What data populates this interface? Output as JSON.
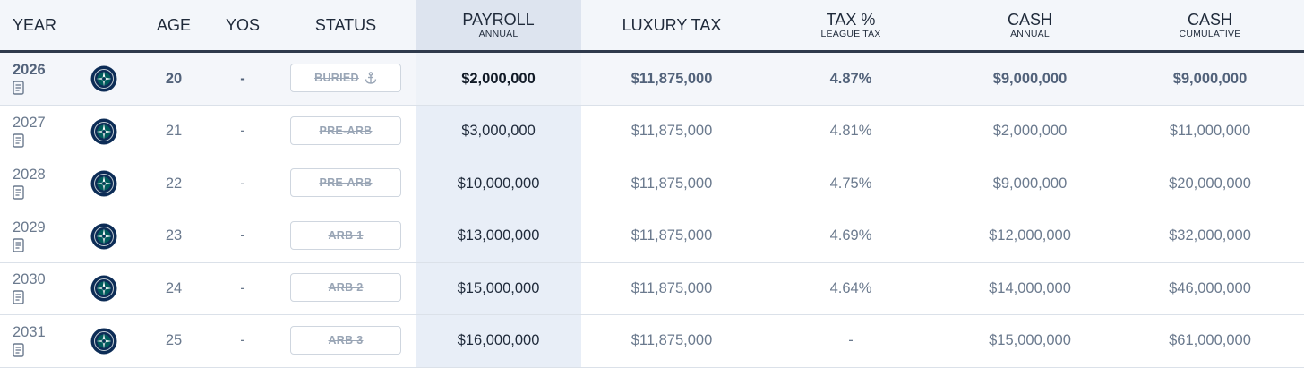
{
  "header": {
    "year": "YEAR",
    "age": "AGE",
    "yos": "YOS",
    "status": "STATUS",
    "payroll": "PAYROLL",
    "payroll_sub": "ANNUAL",
    "luxury_tax": "LUXURY TAX",
    "tax_pct": "TAX %",
    "tax_pct_sub": "LEAGUE TAX",
    "cash_annual": "CASH",
    "cash_annual_sub": "ANNUAL",
    "cash_cumulative": "CASH",
    "cash_cumulative_sub": "CUMULATIVE"
  },
  "rows": [
    {
      "year": "2026",
      "team_icon": "mariners-logo",
      "age": "20",
      "yos": "-",
      "status": "BURIED",
      "status_icon": "anchor-icon",
      "payroll": "$2,000,000",
      "luxury_tax": "$11,875,000",
      "tax_pct": "4.87%",
      "cash_annual": "$9,000,000",
      "cash_cumulative": "$9,000,000"
    },
    {
      "year": "2027",
      "team_icon": "mariners-logo",
      "age": "21",
      "yos": "-",
      "status": "PRE-ARB",
      "payroll": "$3,000,000",
      "luxury_tax": "$11,875,000",
      "tax_pct": "4.81%",
      "cash_annual": "$2,000,000",
      "cash_cumulative": "$11,000,000"
    },
    {
      "year": "2028",
      "team_icon": "mariners-logo",
      "age": "22",
      "yos": "-",
      "status": "PRE-ARB",
      "payroll": "$10,000,000",
      "luxury_tax": "$11,875,000",
      "tax_pct": "4.75%",
      "cash_annual": "$9,000,000",
      "cash_cumulative": "$20,000,000"
    },
    {
      "year": "2029",
      "team_icon": "mariners-logo",
      "age": "23",
      "yos": "-",
      "status": "ARB 1",
      "payroll": "$13,000,000",
      "luxury_tax": "$11,875,000",
      "tax_pct": "4.69%",
      "cash_annual": "$12,000,000",
      "cash_cumulative": "$32,000,000"
    },
    {
      "year": "2030",
      "team_icon": "mariners-logo",
      "age": "24",
      "yos": "-",
      "status": "ARB 2",
      "payroll": "$15,000,000",
      "luxury_tax": "$11,875,000",
      "tax_pct": "4.64%",
      "cash_annual": "$14,000,000",
      "cash_cumulative": "$46,000,000"
    },
    {
      "year": "2031",
      "team_icon": "mariners-logo",
      "age": "25",
      "yos": "-",
      "status": "ARB 3",
      "payroll": "$16,000,000",
      "luxury_tax": "$11,875,000",
      "tax_pct": "-",
      "cash_annual": "$15,000,000",
      "cash_cumulative": "$61,000,000"
    }
  ],
  "colors": {
    "header_bg": "#f3f6fa",
    "header_border": "#2f3a4c",
    "payroll_column_bg": "#e8eef7",
    "text_primary": "#1f2a3a",
    "text_muted": "#6b7a8e",
    "logo_navy": "#0c2c56",
    "logo_teal": "#005c5c"
  }
}
